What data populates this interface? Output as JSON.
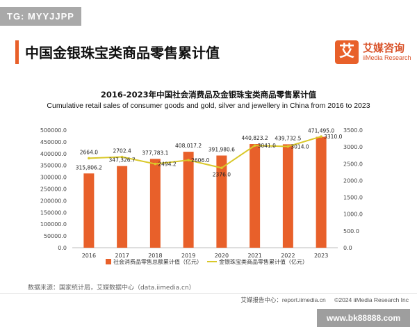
{
  "badge": "TG: MYYJJPP",
  "page_title": "中国金银珠宝类商品零售累计值",
  "logo": {
    "mark": "艾",
    "name_cn": "艾媒咨询",
    "name_en": "iiMedia Research"
  },
  "source_note": "数据来源：国家统计局，艾媒数据中心（data.iimedia.cn）",
  "footer": {
    "report_site": "艾媒报告中心：report.iimedia.cn",
    "copyright": "©2024 iiMedia Research Inc"
  },
  "watermark": "www.bk88888.com",
  "colors": {
    "bar": "#e8602a",
    "line": "#d9c82a",
    "accent": "#e8602a"
  },
  "chart_data": {
    "type": "bar",
    "title": "2016-2023年中国社会消费品及金银珠宝类商品零售累计值",
    "subtitle": "Cumulative retail sales of consumer goods and gold, silver and jewellery in China from 2016 to 2023",
    "categories": [
      "2016",
      "2017",
      "2018",
      "2019",
      "2020",
      "2021",
      "2022",
      "2023"
    ],
    "series": [
      {
        "name": "社会消费品零售总额累计值（亿元）",
        "type": "bar",
        "axis": "left",
        "values": [
          315806.2,
          347326.7,
          377783.1,
          408017.2,
          391980.6,
          440823.2,
          439732.5,
          471495.0
        ],
        "labels": [
          "315,806.2",
          "347,326.7",
          "377,783.1",
          "408,017.2",
          "391,980.6",
          "440,823.2",
          "439,732.5",
          "471,495.0"
        ]
      },
      {
        "name": "金银珠宝类商品零售累计值（亿元）",
        "type": "line",
        "axis": "right",
        "values": [
          2664.0,
          2702.4,
          2494.2,
          2606.0,
          2376.0,
          3041.0,
          3014.0,
          3310.0
        ],
        "labels": [
          "2664.0",
          "2702.4",
          "2494.2",
          "2606.0",
          "2376.0",
          "3041.0",
          "3014.0",
          "3310.0"
        ]
      }
    ],
    "y_left": {
      "range": [
        0,
        500000
      ],
      "ticks": [
        "0.0",
        "50000.0",
        "100000.0",
        "150000.0",
        "200000.0",
        "250000.0",
        "300000.0",
        "350000.0",
        "400000.0",
        "450000.0",
        "500000.0"
      ]
    },
    "y_right": {
      "range": [
        0,
        3500
      ],
      "ticks": [
        "0.0",
        "500.0",
        "1000.0",
        "1500.0",
        "2000.0",
        "2500.0",
        "3000.0",
        "3500.0"
      ]
    },
    "grid": false,
    "legend_position": "bottom"
  }
}
